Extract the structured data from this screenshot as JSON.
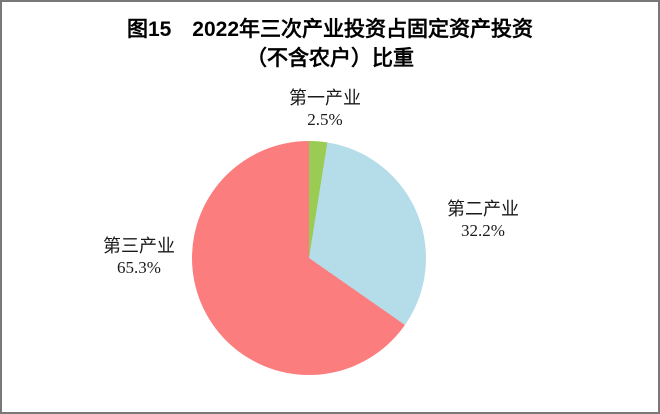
{
  "figure": {
    "title_line1": "图15　2022年三次产业投资占固定资产投资",
    "title_line2": "（不含农户）比重"
  },
  "chart_data": {
    "type": "pie",
    "title": "图15 2022年三次产业投资占固定资产投资（不含农户）比重",
    "unit": "%",
    "start_angle_deg": 0,
    "direction": "clockwise",
    "legend_position": "none",
    "labels_position": "outside",
    "slices": [
      {
        "label": "第一产业",
        "value": 2.5,
        "pct_label": "2.5%",
        "color": "#9ACB53"
      },
      {
        "label": "第二产业",
        "value": 32.2,
        "pct_label": "32.2%",
        "color": "#B5DCE9"
      },
      {
        "label": "第三产业",
        "value": 65.3,
        "pct_label": "65.3%",
        "color": "#FC7D7D"
      }
    ],
    "colors": {
      "primary_green": "#9ACB53",
      "secondary_blue": "#B5DCE9",
      "tertiary_red": "#FC7D7D",
      "frame_gray": "#787878"
    }
  }
}
